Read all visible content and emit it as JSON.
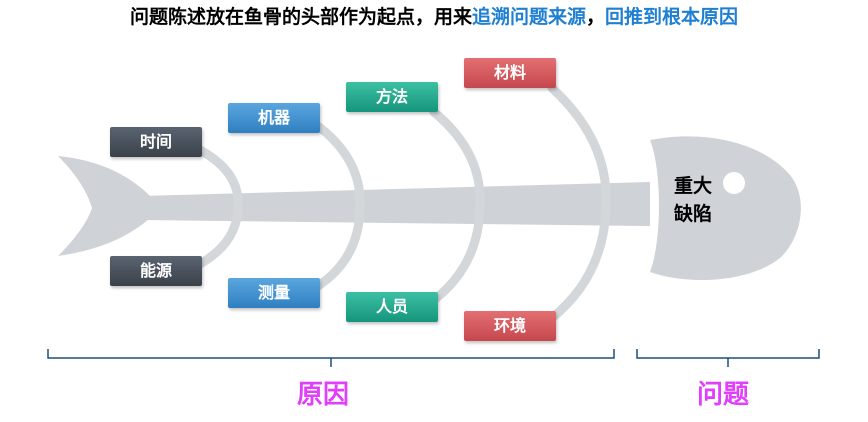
{
  "headline": {
    "part1": "问题陈述放在鱼骨的头部作为起点，用来",
    "part2": "追溯问题来源",
    "part3": "，",
    "part4": "回推到根本原因"
  },
  "fish": {
    "head_label_line1": "重大",
    "head_label_line2": "缺陷"
  },
  "causes": {
    "top": [
      "时间",
      "机器",
      "方法",
      "材料"
    ],
    "bottom": [
      "能源",
      "测量",
      "人员",
      "环境"
    ]
  },
  "brackets": {
    "causes_label": "原因",
    "problem_label": "问题"
  },
  "colors": {
    "fish_body": "#cfd3d7",
    "bone": "#d4d7da",
    "bracket": "#1f4e79",
    "bottom_label": "#e040fb",
    "headline_accent": "#1f7fd1"
  }
}
